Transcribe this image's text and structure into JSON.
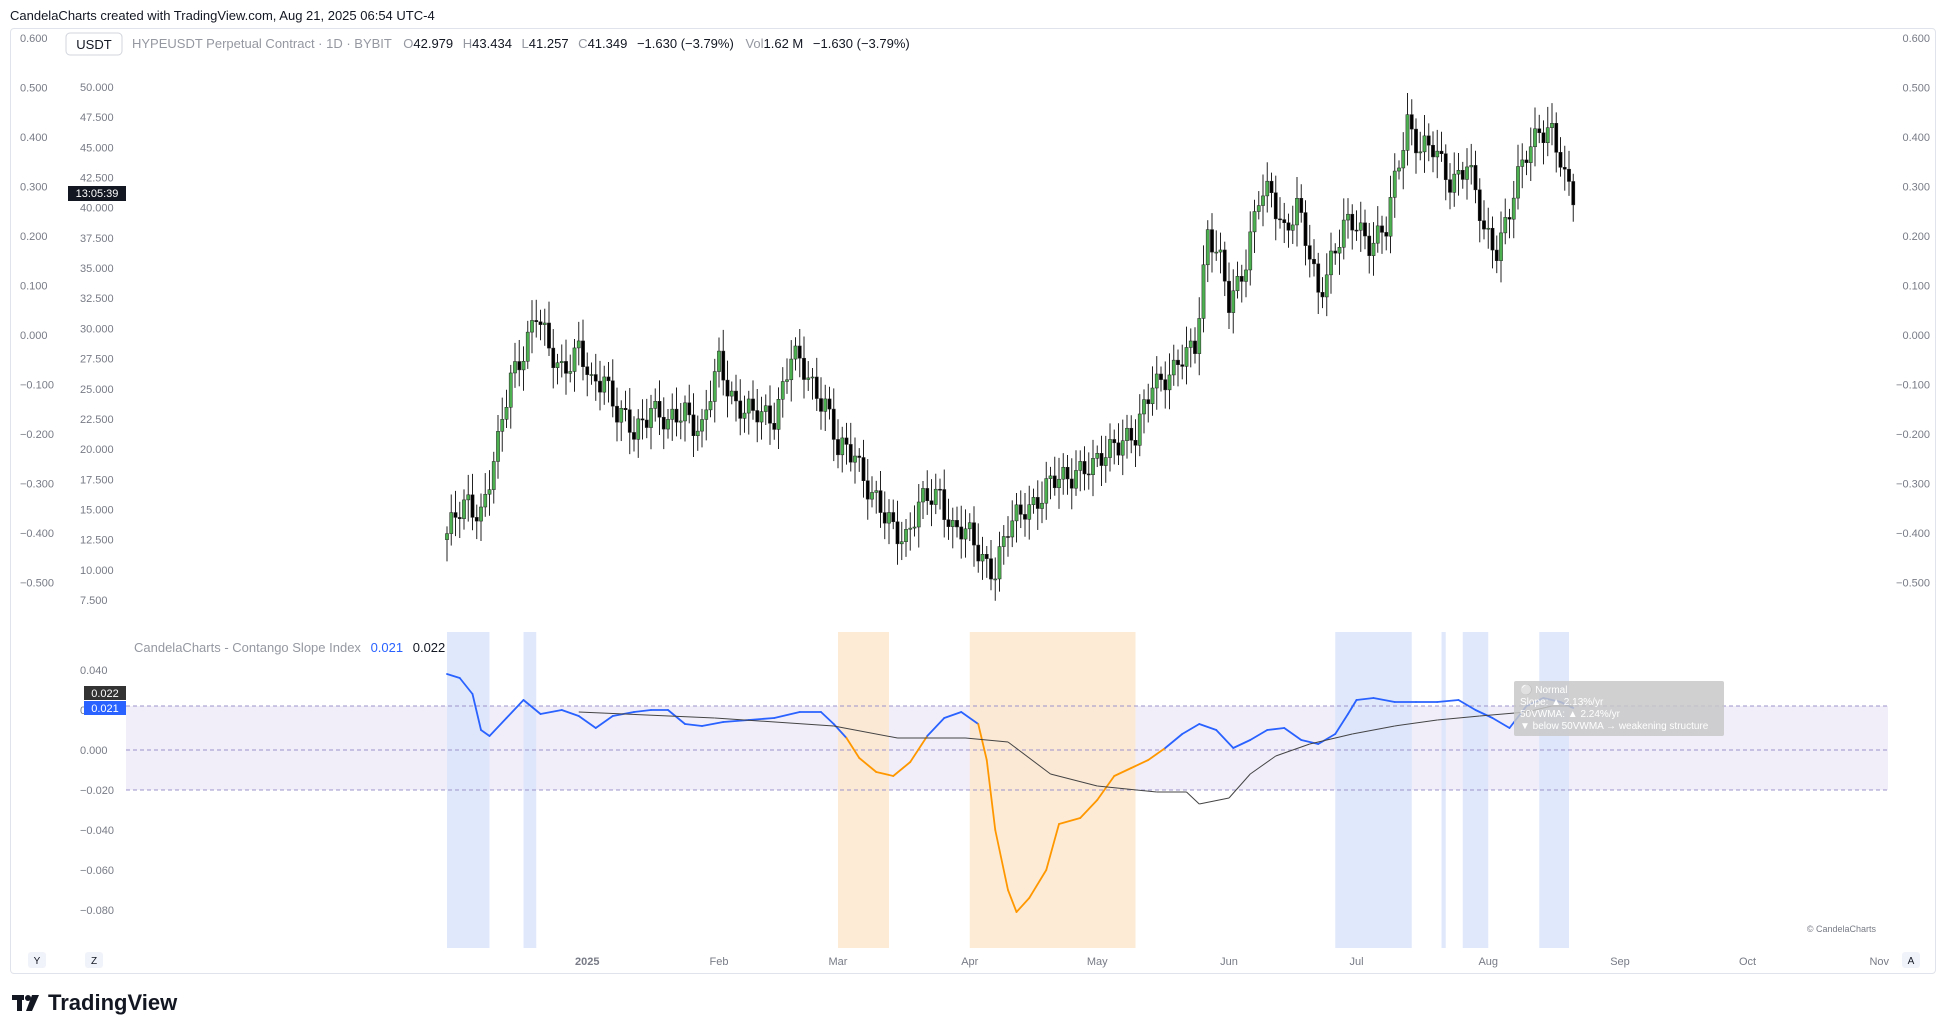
{
  "header": {
    "text": "CandelaCharts created with TradingView.com, Aug 21, 2025 06:54 UTC-4"
  },
  "legend": {
    "currency": "USDT",
    "symbol": "HYPEUSDT Perpetual Contract · 1D · BYBIT",
    "open_label": "O",
    "open": "42.979",
    "high_label": "H",
    "high": "43.434",
    "low_label": "L",
    "low": "41.257",
    "close_label": "C",
    "close": "41.349",
    "change": "−1.630 (−3.79%)",
    "vol_label": "Vol",
    "vol": "1.62 M",
    "vol_change": "−1.630 (−3.79%)",
    "countdown": "13:05:39"
  },
  "indicator": {
    "name": "CandelaCharts - Contango Slope Index",
    "value1": "0.021",
    "value2": "0.022",
    "badge_top": "0.022",
    "badge_bottom": "0.021",
    "tooltip_lines": [
      "⚪ Normal",
      "Slope: ▲ 2.13%/yr",
      "50VWMA: ▲ 2.24%/yr",
      "▼ below 50VWMA → weakening structure"
    ],
    "watermark": "© CandelaCharts"
  },
  "axes": {
    "price_ticks": [
      "50.000",
      "47.500",
      "45.000",
      "42.500",
      "40.000",
      "37.500",
      "35.000",
      "32.500",
      "30.000",
      "27.500",
      "25.000",
      "22.500",
      "20.000",
      "17.500",
      "15.000",
      "12.500",
      "10.000",
      "7.500"
    ],
    "overlay_ticks": [
      "0.600",
      "0.500",
      "0.400",
      "0.300",
      "0.200",
      "0.100",
      "0.000",
      "−0.100",
      "−0.200",
      "−0.300",
      "−0.400",
      "−0.500"
    ],
    "indicator_ticks": [
      "0.040",
      "0.020",
      "0.000",
      "−0.020",
      "−0.040",
      "−0.060",
      "−0.080"
    ],
    "time_labels": [
      "2025",
      "Feb",
      "Mar",
      "Apr",
      "May",
      "Jun",
      "Jul",
      "Aug",
      "Sep",
      "Oct",
      "Nov"
    ],
    "y_button": "Y",
    "z_button": "Z",
    "a_button": "A"
  },
  "brand": {
    "logo_text": "TradingView"
  },
  "colors": {
    "up": "#4caf50",
    "down": "#000000",
    "slope_up": "#2962ff",
    "slope_down": "#ff9800",
    "vwma": "#444444",
    "band_fill": "#e8e3f7",
    "bull_zone": "#dbe4fb",
    "bear_zone": "#fde8cf"
  },
  "chart_data": [
    {
      "type": "candlestick",
      "title": "HYPEUSDT Perpetual Contract · 1D · BYBIT",
      "y_range": [
        7.5,
        50.0
      ],
      "x_range": [
        "2024-11-29",
        "2025-08-21"
      ],
      "anchors": [
        [
          "2024-11-29",
          13.0
        ],
        [
          "2024-12-04",
          15.5
        ],
        [
          "2024-12-07",
          15.0
        ],
        [
          "2024-12-11",
          20.0
        ],
        [
          "2024-12-14",
          26.0
        ],
        [
          "2024-12-17",
          28.5
        ],
        [
          "2024-12-20",
          31.0
        ],
        [
          "2024-12-23",
          28.0
        ],
        [
          "2024-12-26",
          27.0
        ],
        [
          "2024-12-30",
          28.0
        ],
        [
          "2025-01-02",
          25.0
        ],
        [
          "2025-01-05",
          26.5
        ],
        [
          "2025-01-08",
          23.0
        ],
        [
          "2025-01-12",
          21.0
        ],
        [
          "2025-01-16",
          24.0
        ],
        [
          "2025-01-20",
          21.5
        ],
        [
          "2025-01-24",
          23.5
        ],
        [
          "2025-01-28",
          21.5
        ],
        [
          "2025-02-01",
          27.0
        ],
        [
          "2025-02-05",
          24.0
        ],
        [
          "2025-02-09",
          22.5
        ],
        [
          "2025-02-14",
          23.0
        ],
        [
          "2025-02-18",
          27.5
        ],
        [
          "2025-02-22",
          26.0
        ],
        [
          "2025-02-26",
          24.0
        ],
        [
          "2025-03-01",
          19.5
        ],
        [
          "2025-03-05",
          20.0
        ],
        [
          "2025-03-09",
          16.0
        ],
        [
          "2025-03-12",
          14.0
        ],
        [
          "2025-03-17",
          13.0
        ],
        [
          "2025-03-20",
          15.0
        ],
        [
          "2025-03-25",
          16.5
        ],
        [
          "2025-03-28",
          13.5
        ],
        [
          "2025-04-01",
          12.5
        ],
        [
          "2025-04-07",
          10.0
        ],
        [
          "2025-04-10",
          13.0
        ],
        [
          "2025-04-14",
          15.5
        ],
        [
          "2025-04-18",
          16.0
        ],
        [
          "2025-04-22",
          17.5
        ],
        [
          "2025-04-26",
          18.5
        ],
        [
          "2025-04-30",
          18.0
        ],
        [
          "2025-05-05",
          21.0
        ],
        [
          "2025-05-10",
          20.5
        ],
        [
          "2025-05-14",
          26.0
        ],
        [
          "2025-05-19",
          26.0
        ],
        [
          "2025-05-24",
          29.0
        ],
        [
          "2025-05-27",
          38.0
        ],
        [
          "2025-05-30",
          35.0
        ],
        [
          "2025-06-01",
          32.0
        ],
        [
          "2025-06-05",
          36.0
        ],
        [
          "2025-06-08",
          40.5
        ],
        [
          "2025-06-11",
          41.0
        ],
        [
          "2025-06-14",
          38.5
        ],
        [
          "2025-06-17",
          40.0
        ],
        [
          "2025-06-19",
          37.0
        ],
        [
          "2025-06-22",
          33.0
        ],
        [
          "2025-06-25",
          36.0
        ],
        [
          "2025-06-28",
          38.0
        ],
        [
          "2025-07-01",
          38.5
        ],
        [
          "2025-07-04",
          37.5
        ],
        [
          "2025-07-08",
          38.0
        ],
        [
          "2025-07-13",
          47.5
        ],
        [
          "2025-07-16",
          45.0
        ],
        [
          "2025-07-19",
          44.5
        ],
        [
          "2025-07-23",
          42.5
        ],
        [
          "2025-07-27",
          43.5
        ],
        [
          "2025-07-31",
          38.0
        ],
        [
          "2025-08-03",
          37.0
        ],
        [
          "2025-08-06",
          39.5
        ],
        [
          "2025-08-10",
          44.5
        ],
        [
          "2025-08-13",
          47.0
        ],
        [
          "2025-08-16",
          46.0
        ],
        [
          "2025-08-19",
          42.0
        ],
        [
          "2025-08-21",
          41.349
        ]
      ]
    },
    {
      "type": "line",
      "title": "CandelaCharts - Contango Slope Index",
      "y_range": [
        -0.09,
        0.045
      ],
      "band": [
        -0.02,
        0.022
      ],
      "series": [
        {
          "name": "Slope",
          "points": [
            [
              "2024-11-29",
              0.038
            ],
            [
              "2024-12-02",
              0.036
            ],
            [
              "2024-12-05",
              0.028
            ],
            [
              "2024-12-07",
              0.01
            ],
            [
              "2024-12-09",
              0.007
            ],
            [
              "2024-12-13",
              0.016
            ],
            [
              "2024-12-17",
              0.025
            ],
            [
              "2024-12-21",
              0.018
            ],
            [
              "2024-12-26",
              0.02
            ],
            [
              "2024-12-30",
              0.017
            ],
            [
              "2025-01-03",
              0.011
            ],
            [
              "2025-01-07",
              0.017
            ],
            [
              "2025-01-12",
              0.019
            ],
            [
              "2025-01-16",
              0.02
            ],
            [
              "2025-01-20",
              0.02
            ],
            [
              "2025-01-24",
              0.013
            ],
            [
              "2025-01-28",
              0.012
            ],
            [
              "2025-02-02",
              0.014
            ],
            [
              "2025-02-08",
              0.015
            ],
            [
              "2025-02-14",
              0.016
            ],
            [
              "2025-02-20",
              0.019
            ],
            [
              "2025-02-25",
              0.019
            ],
            [
              "2025-02-28",
              0.013
            ],
            [
              "2025-03-03",
              0.006
            ],
            [
              "2025-03-06",
              -0.004
            ],
            [
              "2025-03-10",
              -0.011
            ],
            [
              "2025-03-14",
              -0.013
            ],
            [
              "2025-03-18",
              -0.006
            ],
            [
              "2025-03-22",
              0.007
            ],
            [
              "2025-03-26",
              0.016
            ],
            [
              "2025-03-30",
              0.019
            ],
            [
              "2025-04-03",
              0.013
            ],
            [
              "2025-04-05",
              -0.005
            ],
            [
              "2025-04-07",
              -0.04
            ],
            [
              "2025-04-10",
              -0.07
            ],
            [
              "2025-04-12",
              -0.081
            ],
            [
              "2025-04-15",
              -0.074
            ],
            [
              "2025-04-19",
              -0.06
            ],
            [
              "2025-04-22",
              -0.037
            ],
            [
              "2025-04-27",
              -0.034
            ],
            [
              "2025-05-01",
              -0.025
            ],
            [
              "2025-05-05",
              -0.013
            ],
            [
              "2025-05-09",
              -0.009
            ],
            [
              "2025-05-13",
              -0.005
            ],
            [
              "2025-05-17",
              0.001
            ],
            [
              "2025-05-21",
              0.008
            ],
            [
              "2025-05-25",
              0.013
            ],
            [
              "2025-05-29",
              0.01
            ],
            [
              "2025-06-02",
              0.001
            ],
            [
              "2025-06-06",
              0.005
            ],
            [
              "2025-06-10",
              0.01
            ],
            [
              "2025-06-14",
              0.011
            ],
            [
              "2025-06-18",
              0.005
            ],
            [
              "2025-06-22",
              0.003
            ],
            [
              "2025-06-26",
              0.008
            ],
            [
              "2025-06-29",
              0.018
            ],
            [
              "2025-07-01",
              0.025
            ],
            [
              "2025-07-05",
              0.026
            ],
            [
              "2025-07-10",
              0.024
            ],
            [
              "2025-07-15",
              0.024
            ],
            [
              "2025-07-20",
              0.024
            ],
            [
              "2025-07-25",
              0.025
            ],
            [
              "2025-07-29",
              0.02
            ],
            [
              "2025-08-02",
              0.016
            ],
            [
              "2025-08-06",
              0.011
            ],
            [
              "2025-08-10",
              0.022
            ],
            [
              "2025-08-14",
              0.026
            ],
            [
              "2025-08-18",
              0.024
            ],
            [
              "2025-08-21",
              0.021
            ]
          ]
        },
        {
          "name": "50VWMA",
          "points": [
            [
              "2024-12-30",
              0.019
            ],
            [
              "2025-01-31",
              0.016
            ],
            [
              "2025-02-28",
              0.012
            ],
            [
              "2025-03-15",
              0.006
            ],
            [
              "2025-03-31",
              0.006
            ],
            [
              "2025-04-10",
              0.004
            ],
            [
              "2025-04-20",
              -0.012
            ],
            [
              "2025-05-01",
              -0.018
            ],
            [
              "2025-05-15",
              -0.021
            ],
            [
              "2025-05-22",
              -0.021
            ],
            [
              "2025-05-25",
              -0.027
            ],
            [
              "2025-06-01",
              -0.024
            ],
            [
              "2025-06-06",
              -0.012
            ],
            [
              "2025-06-12",
              -0.003
            ],
            [
              "2025-06-20",
              0.003
            ],
            [
              "2025-06-30",
              0.008
            ],
            [
              "2025-07-10",
              0.012
            ],
            [
              "2025-07-20",
              0.015
            ],
            [
              "2025-07-30",
              0.017
            ],
            [
              "2025-08-10",
              0.019
            ],
            [
              "2025-08-16",
              0.022
            ],
            [
              "2025-08-21",
              0.022
            ]
          ]
        }
      ],
      "zones": [
        {
          "kind": "bull",
          "from": "2024-11-29",
          "to": "2024-12-09"
        },
        {
          "kind": "bull",
          "from": "2024-12-17",
          "to": "2024-12-20"
        },
        {
          "kind": "bear",
          "from": "2025-03-01",
          "to": "2025-03-13"
        },
        {
          "kind": "bear",
          "from": "2025-04-01",
          "to": "2025-05-10"
        },
        {
          "kind": "bull",
          "from": "2025-06-26",
          "to": "2025-07-14"
        },
        {
          "kind": "bull",
          "from": "2025-07-21",
          "to": "2025-07-22"
        },
        {
          "kind": "bull",
          "from": "2025-07-26",
          "to": "2025-08-01"
        },
        {
          "kind": "bull",
          "from": "2025-08-13",
          "to": "2025-08-20"
        }
      ]
    }
  ]
}
